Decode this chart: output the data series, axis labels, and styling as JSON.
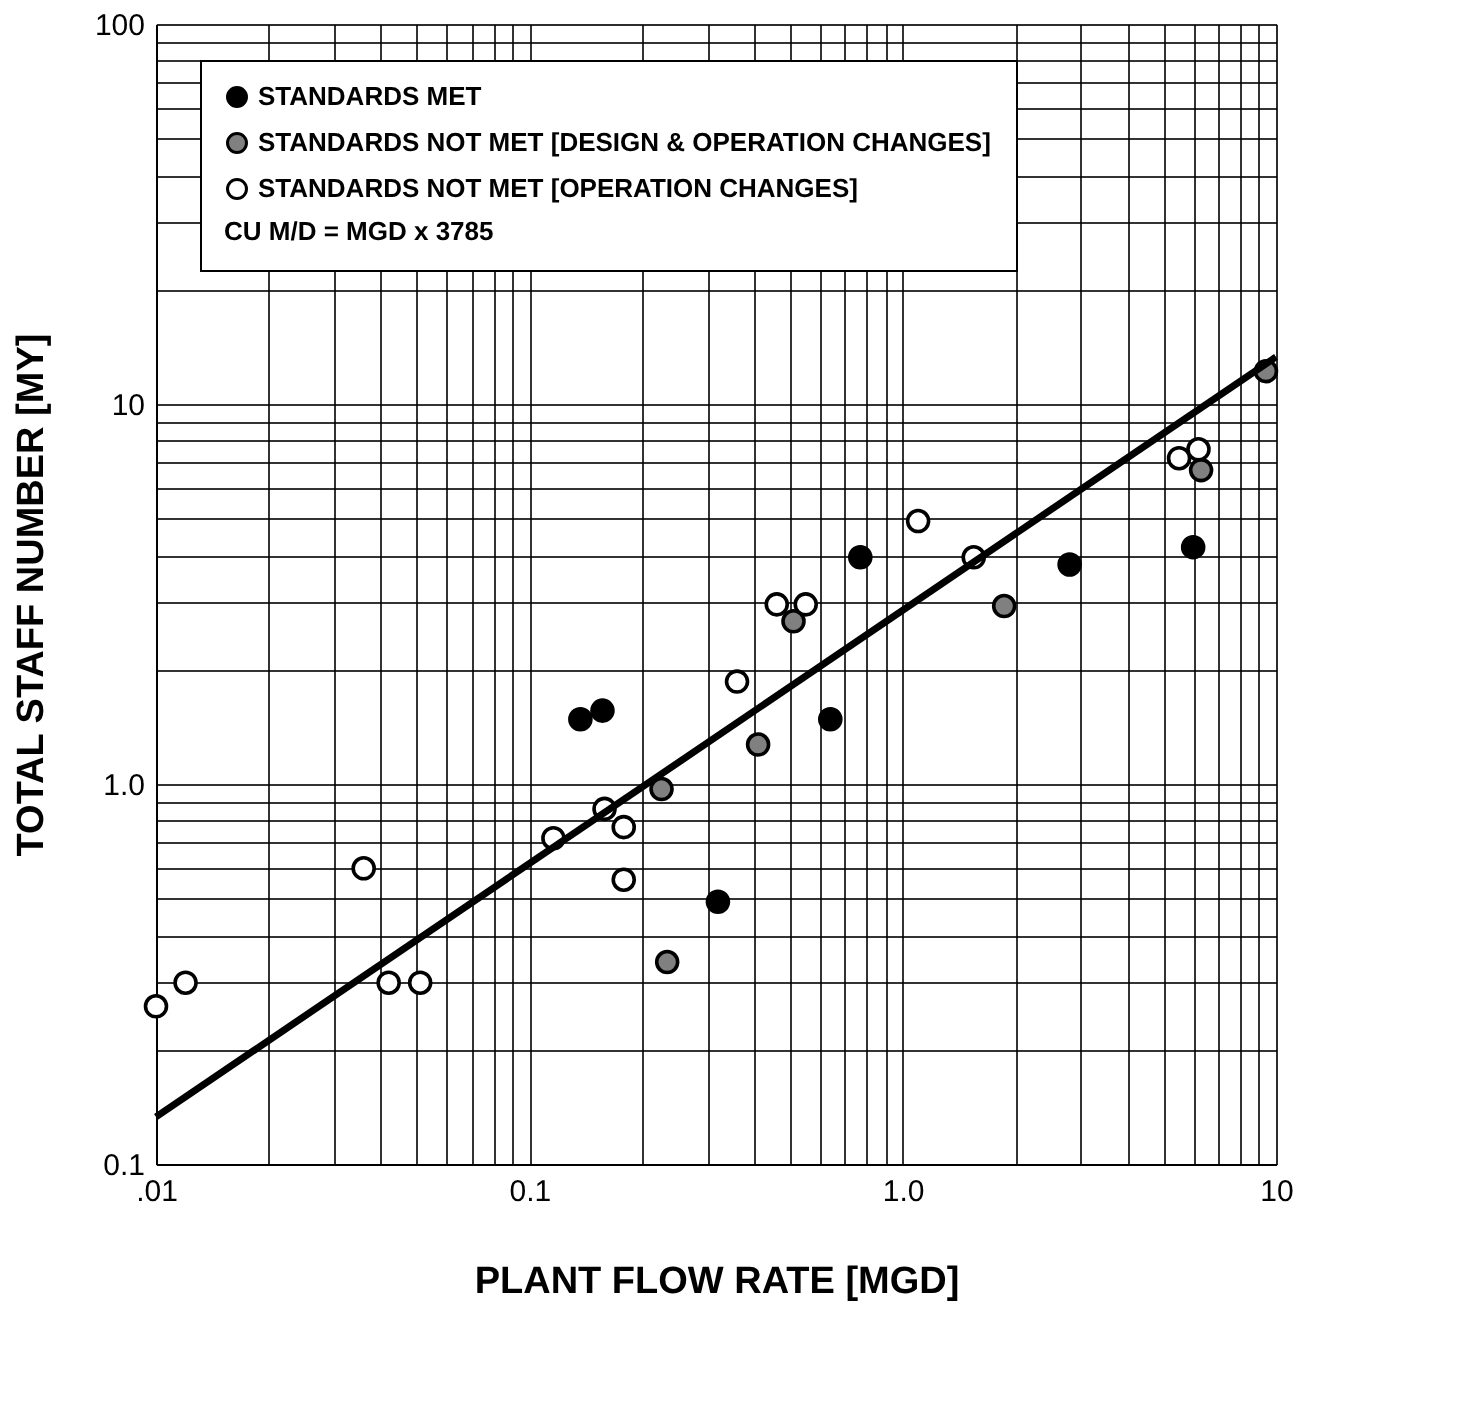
{
  "chart_data": {
    "type": "scatter",
    "xlabel": "PLANT FLOW RATE [MGD]",
    "ylabel": "TOTAL STAFF NUMBER [MY]",
    "legend_title": "CU M/D = MGD x 3785",
    "log": "xy",
    "grid": true,
    "legend": "top",
    "xlim": [
      0.01,
      10
    ],
    "ylim": [
      0.1,
      100
    ],
    "xticks": [
      {
        "value": 0.01,
        "label": ".01"
      },
      {
        "value": 0.02,
        "label": null
      },
      {
        "value": 0.03,
        "label": null
      },
      {
        "value": 0.04,
        "label": null
      },
      {
        "value": 0.05,
        "label": null
      },
      {
        "value": 0.06,
        "label": null
      },
      {
        "value": 0.07,
        "label": null
      },
      {
        "value": 0.08,
        "label": null
      },
      {
        "value": 0.09,
        "label": null
      },
      0.1,
      {
        "value": 0.2,
        "label": null
      },
      {
        "value": 0.3,
        "label": null
      },
      {
        "value": 0.4,
        "label": null
      },
      {
        "value": 0.5,
        "label": null
      },
      {
        "value": 0.6,
        "label": null
      },
      {
        "value": 0.7,
        "label": null
      },
      {
        "value": 0.8,
        "label": null
      },
      {
        "value": 0.9,
        "label": null
      },
      {
        "value": 1,
        "label": "1.0"
      },
      {
        "value": 2,
        "label": null
      },
      {
        "value": 3,
        "label": null
      },
      {
        "value": 4,
        "label": null
      },
      {
        "value": 5,
        "label": null
      },
      {
        "value": 6,
        "label": null
      },
      {
        "value": 7,
        "label": null
      },
      {
        "value": 8,
        "label": null
      },
      {
        "value": 9,
        "label": null
      },
      10
    ],
    "yticks": [
      0.1,
      {
        "value": 0.2,
        "label": null
      },
      {
        "value": 0.3,
        "label": null
      },
      {
        "value": 0.4,
        "label": null
      },
      {
        "value": 0.5,
        "label": null
      },
      {
        "value": 0.6,
        "label": null
      },
      {
        "value": 0.7,
        "label": null
      },
      {
        "value": 0.8,
        "label": null
      },
      {
        "value": 0.9,
        "label": null
      },
      {
        "value": 1,
        "label": "1.0"
      },
      {
        "value": 2,
        "label": null
      },
      {
        "value": 3,
        "label": null
      },
      {
        "value": 4,
        "label": null
      },
      {
        "value": 5,
        "label": null
      },
      {
        "value": 6,
        "label": null
      },
      {
        "value": 7,
        "label": null
      },
      {
        "value": 8,
        "label": null
      },
      {
        "value": 9,
        "label": null
      },
      10,
      {
        "value": 20,
        "label": null
      },
      {
        "value": 30,
        "label": null
      },
      {
        "value": 40,
        "label": null
      },
      {
        "value": 50,
        "label": null
      },
      {
        "value": 60,
        "label": null
      },
      {
        "value": 70,
        "label": null
      },
      {
        "value": 80,
        "label": null
      },
      {
        "value": 90,
        "label": null
      },
      100
    ],
    "series": [
      {
        "name": "STANDARDS MET",
        "type": "scatter",
        "marker": "circle",
        "color": "#000000",
        "x": [
          0.137,
          0.157,
          0.32,
          0.64,
          0.77,
          2.8,
          6.0
        ],
        "values": [
          1.48,
          1.56,
          0.49,
          1.48,
          3.95,
          3.78,
          4.2
        ]
      },
      {
        "name": "STANDARDS NOT MET [DESIGN & OPERATION CHANGES]",
        "type": "scatter",
        "marker": "circle",
        "color": "#808080",
        "x": [
          0.226,
          0.234,
          0.41,
          0.51,
          1.87,
          6.3,
          9.4
        ],
        "values": [
          0.97,
          0.34,
          1.27,
          2.68,
          2.94,
          6.7,
          12.2
        ]
      },
      {
        "name": "STANDARDS NOT MET [OPERATION CHANGES]",
        "type": "scatter",
        "marker": "circle",
        "color": "#ffffff",
        "x": [
          0.01,
          0.012,
          0.036,
          0.042,
          0.051,
          0.116,
          0.159,
          0.179,
          0.179,
          0.36,
          0.46,
          0.55,
          1.1,
          1.55,
          5.5,
          6.2
        ],
        "values": [
          0.26,
          0.3,
          0.6,
          0.3,
          0.3,
          0.72,
          0.86,
          0.77,
          0.56,
          1.86,
          2.97,
          2.97,
          4.92,
          3.95,
          7.2,
          7.6
        ]
      },
      {
        "type": "line",
        "marker": "none",
        "color": "#000000",
        "x": [
          0.01,
          10
        ],
        "values": [
          0.133,
          13.3
        ]
      }
    ]
  }
}
